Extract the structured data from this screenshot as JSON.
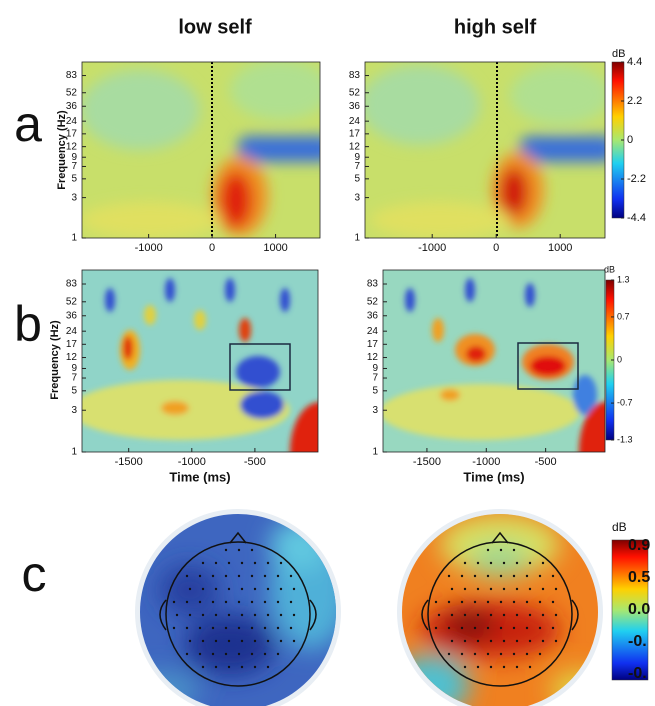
{
  "columns": [
    "low self",
    "high self"
  ],
  "panels": {
    "a": {
      "label": "a",
      "ylabel": "Frequency (Hz)",
      "xlim": [
        -2050,
        1700
      ],
      "xticks": [
        -1000,
        0,
        1000
      ],
      "ylim": [
        1,
        120
      ],
      "yticks": [
        1,
        3,
        5,
        7,
        9,
        12,
        17,
        24,
        36,
        52,
        83
      ],
      "colorbar": {
        "unit": "dB",
        "lim": [
          -4.4,
          4.4
        ],
        "ticks": [
          4.4,
          2.2,
          0,
          -2.2,
          -4.4
        ]
      }
    },
    "b": {
      "label": "b",
      "ylabel": "Frequency (Hz)",
      "xlabel": "Time (ms)",
      "xlim": [
        -1870,
        0
      ],
      "xticks": [
        -1500,
        -1000,
        -500
      ],
      "ylim": [
        1,
        120
      ],
      "yticks": [
        1,
        3,
        5,
        7,
        9,
        12,
        17,
        24,
        36,
        52,
        83
      ],
      "colorbar": {
        "unit": "dB",
        "lim": [
          -1.3,
          1.3
        ],
        "ticks": [
          1.3,
          0.7,
          0,
          -0.7,
          -1.3
        ]
      }
    },
    "c": {
      "label": "c",
      "colorbar": {
        "unit": "dB",
        "labels": [
          "0.9",
          "0.5",
          "0.0",
          "-0.",
          "-0."
        ]
      }
    }
  }
}
